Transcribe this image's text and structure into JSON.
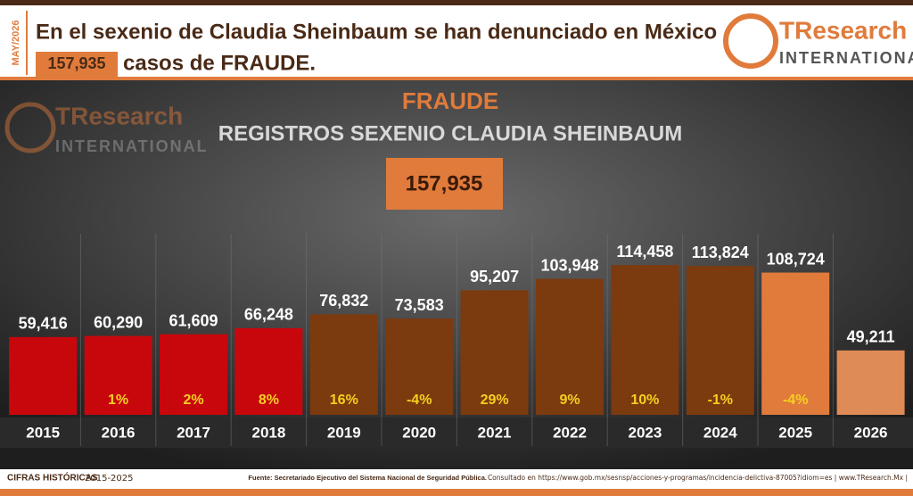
{
  "header": {
    "date": "MAY/2026",
    "headline": "En el sexenio de Claudia Sheinbaum se han denunciado en México",
    "total": "157,935",
    "headline_end": "casos de FRAUDE."
  },
  "logo": {
    "name": "TResearch",
    "sub": "INTERNATIONAL"
  },
  "chart_data": {
    "type": "bar",
    "title": "FRAUDE",
    "subtitle": "REGISTROS SEXENIO CLAUDIA SHEINBAUM",
    "total_label": "157,935",
    "categories": [
      "2015",
      "2016",
      "2017",
      "2018",
      "2019",
      "2020",
      "2021",
      "2022",
      "2023",
      "2024",
      "2025",
      "2026"
    ],
    "values": [
      59416,
      60290,
      61609,
      66248,
      76832,
      73583,
      95207,
      103948,
      114458,
      113824,
      108724,
      49211
    ],
    "value_labels": [
      "59,416",
      "60,290",
      "61,609",
      "66,248",
      "76,832",
      "73,583",
      "95,207",
      "103,948",
      "114,458",
      "113,824",
      "108,724",
      "49,211"
    ],
    "change_labels": [
      null,
      "1%",
      "2%",
      "8%",
      "16%",
      "-4%",
      "29%",
      "9%",
      "10%",
      "-1%",
      "-4%",
      null
    ],
    "colors": [
      "#c8070d",
      "#c8070d",
      "#c8070d",
      "#c8070d",
      "#7c3a0f",
      "#7c3a0f",
      "#7c3a0f",
      "#7c3a0f",
      "#7c3a0f",
      "#7c3a0f",
      "#e07b3c",
      "#df8b55"
    ],
    "ylim": [
      0,
      120000
    ]
  },
  "footer": {
    "label": "CIFRAS HISTÓRICAS",
    "range": "2015-2025",
    "source": "Fuente: Secretariado Ejecutivo del Sistema Nacional de Seguridad Pública.",
    "link": "Consultado en https://www.gob.mx/sesnsp/acciones-y-programas/incidencia-delictiva-87005?idiom=es | www.TResearch.Mx |"
  }
}
